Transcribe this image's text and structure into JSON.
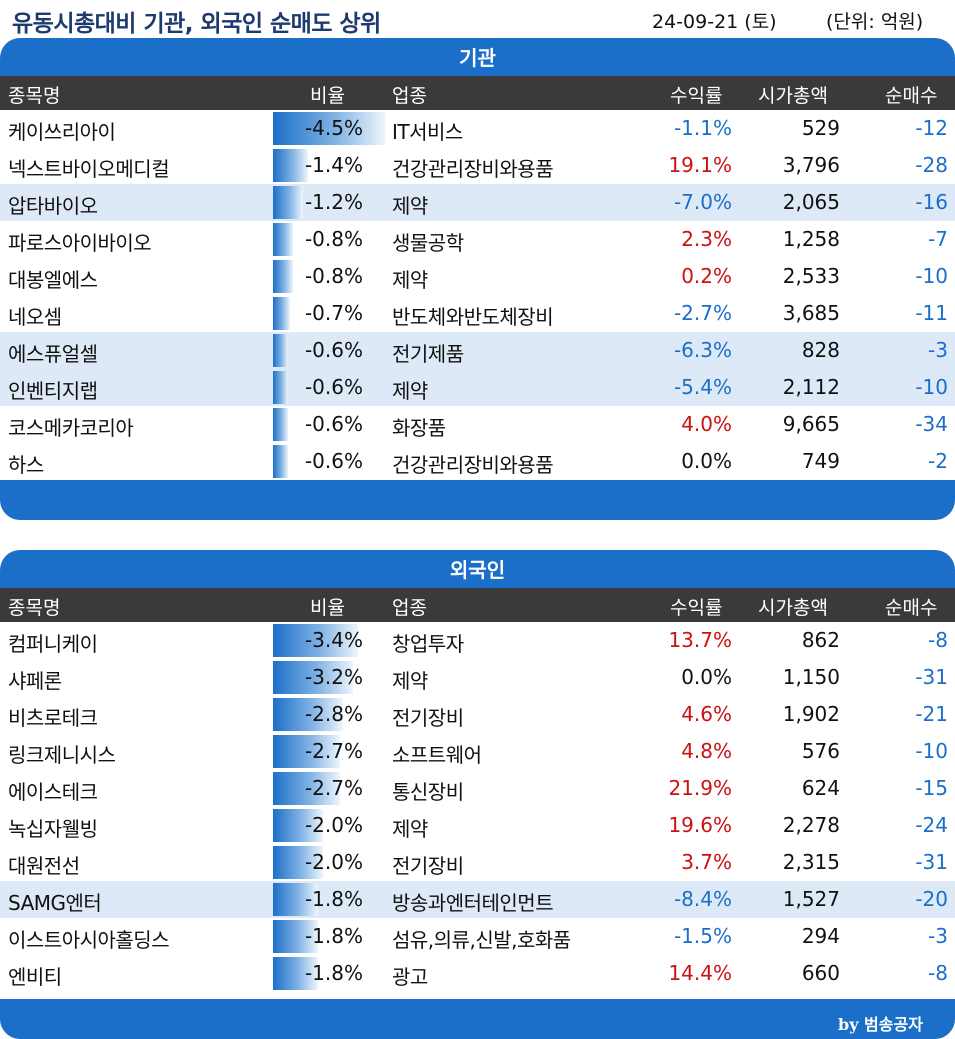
{
  "header": {
    "title": "유동시총대비 기관, 외국인 순매도 상위",
    "date": "24-09-21 (토)",
    "unit": "(단위: 억원)"
  },
  "columns": {
    "name": "종목명",
    "ratio": "비율",
    "industry": "업종",
    "return": "수익률",
    "market_cap": "시가총액",
    "net_sell": "순매수"
  },
  "institution": {
    "title": "기관",
    "rows": [
      {
        "name": "케이쓰리아이",
        "ratio": "-4.5%",
        "ratio_value": -4.5,
        "industry": "IT서비스",
        "return": "-1.1%",
        "return_value": -1.1,
        "market_cap": "529",
        "net": "-12",
        "highlight": false
      },
      {
        "name": "넥스트바이오메디컬",
        "ratio": "-1.4%",
        "ratio_value": -1.4,
        "industry": "건강관리장비와용품",
        "return": "19.1%",
        "return_value": 19.1,
        "market_cap": "3,796",
        "net": "-28",
        "highlight": false
      },
      {
        "name": "압타바이오",
        "ratio": "-1.2%",
        "ratio_value": -1.2,
        "industry": "제약",
        "return": "-7.0%",
        "return_value": -7.0,
        "market_cap": "2,065",
        "net": "-16",
        "highlight": true
      },
      {
        "name": "파로스아이바이오",
        "ratio": "-0.8%",
        "ratio_value": -0.8,
        "industry": "생물공학",
        "return": "2.3%",
        "return_value": 2.3,
        "market_cap": "1,258",
        "net": "-7",
        "highlight": false
      },
      {
        "name": "대봉엘에스",
        "ratio": "-0.8%",
        "ratio_value": -0.8,
        "industry": "제약",
        "return": "0.2%",
        "return_value": 0.2,
        "market_cap": "2,533",
        "net": "-10",
        "highlight": false
      },
      {
        "name": "네오셈",
        "ratio": "-0.7%",
        "ratio_value": -0.7,
        "industry": "반도체와반도체장비",
        "return": "-2.7%",
        "return_value": -2.7,
        "market_cap": "3,685",
        "net": "-11",
        "highlight": false
      },
      {
        "name": "에스퓨얼셀",
        "ratio": "-0.6%",
        "ratio_value": -0.6,
        "industry": "전기제품",
        "return": "-6.3%",
        "return_value": -6.3,
        "market_cap": "828",
        "net": "-3",
        "highlight": true
      },
      {
        "name": "인벤티지랩",
        "ratio": "-0.6%",
        "ratio_value": -0.6,
        "industry": "제약",
        "return": "-5.4%",
        "return_value": -5.4,
        "market_cap": "2,112",
        "net": "-10",
        "highlight": true
      },
      {
        "name": "코스메카코리아",
        "ratio": "-0.6%",
        "ratio_value": -0.6,
        "industry": "화장품",
        "return": "4.0%",
        "return_value": 4.0,
        "market_cap": "9,665",
        "net": "-34",
        "highlight": false
      },
      {
        "name": "하스",
        "ratio": "-0.6%",
        "ratio_value": -0.6,
        "industry": "건강관리장비와용품",
        "return": "0.0%",
        "return_value": 0.0,
        "market_cap": "749",
        "net": "-2",
        "highlight": false
      }
    ]
  },
  "foreign": {
    "title": "외국인",
    "rows": [
      {
        "name": "컴퍼니케이",
        "ratio": "-3.4%",
        "ratio_value": -3.4,
        "industry": "창업투자",
        "return": "13.7%",
        "return_value": 13.7,
        "market_cap": "862",
        "net": "-8",
        "highlight": false
      },
      {
        "name": "샤페론",
        "ratio": "-3.2%",
        "ratio_value": -3.2,
        "industry": "제약",
        "return": "0.0%",
        "return_value": 0.0,
        "market_cap": "1,150",
        "net": "-31",
        "highlight": false
      },
      {
        "name": "비츠로테크",
        "ratio": "-2.8%",
        "ratio_value": -2.8,
        "industry": "전기장비",
        "return": "4.6%",
        "return_value": 4.6,
        "market_cap": "1,902",
        "net": "-21",
        "highlight": false
      },
      {
        "name": "링크제니시스",
        "ratio": "-2.7%",
        "ratio_value": -2.7,
        "industry": "소프트웨어",
        "return": "4.8%",
        "return_value": 4.8,
        "market_cap": "576",
        "net": "-10",
        "highlight": false
      },
      {
        "name": "에이스테크",
        "ratio": "-2.7%",
        "ratio_value": -2.7,
        "industry": "통신장비",
        "return": "21.9%",
        "return_value": 21.9,
        "market_cap": "624",
        "net": "-15",
        "highlight": false
      },
      {
        "name": "녹십자웰빙",
        "ratio": "-2.0%",
        "ratio_value": -2.0,
        "industry": "제약",
        "return": "19.6%",
        "return_value": 19.6,
        "market_cap": "2,278",
        "net": "-24",
        "highlight": false
      },
      {
        "name": "대원전선",
        "ratio": "-2.0%",
        "ratio_value": -2.0,
        "industry": "전기장비",
        "return": "3.7%",
        "return_value": 3.7,
        "market_cap": "2,315",
        "net": "-31",
        "highlight": false
      },
      {
        "name": "SAMG엔터",
        "ratio": "-1.8%",
        "ratio_value": -1.8,
        "industry": "방송과엔터테인먼트",
        "return": "-8.4%",
        "return_value": -8.4,
        "market_cap": "1,527",
        "net": "-20",
        "highlight": true
      },
      {
        "name": "이스트아시아홀딩스",
        "ratio": "-1.8%",
        "ratio_value": -1.8,
        "industry": "섬유,의류,신발,호화품",
        "return": "-1.5%",
        "return_value": -1.5,
        "market_cap": "294",
        "net": "-3",
        "highlight": false
      },
      {
        "name": "엔비티",
        "ratio": "-1.8%",
        "ratio_value": -1.8,
        "industry": "광고",
        "return": "14.4%",
        "return_value": 14.4,
        "market_cap": "660",
        "net": "-8",
        "highlight": false
      }
    ]
  },
  "credit": "by 범송공자",
  "colors": {
    "accent": "#1b6fc8",
    "header_dark": "#3a3a3a",
    "positive": "#cc1111",
    "negative": "#1c6fc8",
    "highlight_row": "#dde9f6"
  }
}
